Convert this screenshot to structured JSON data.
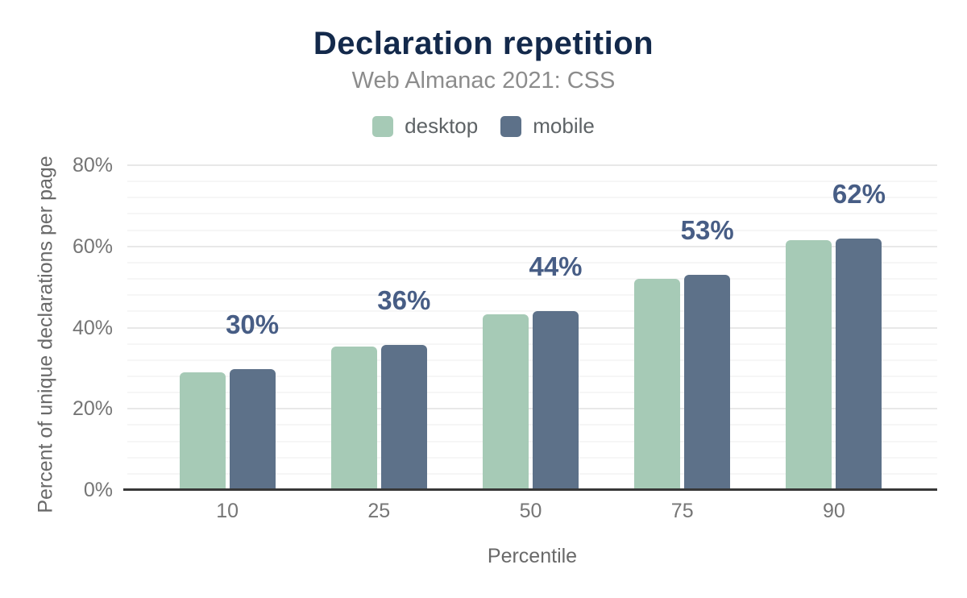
{
  "figure": {
    "title": "Declaration repetition",
    "subtitle": "Web Almanac 2021: CSS"
  },
  "legend": [
    {
      "label": "desktop",
      "color": "#a6cab6"
    },
    {
      "label": "mobile",
      "color": "#5d7189"
    }
  ],
  "chart_data": {
    "type": "bar",
    "title": "Declaration repetition",
    "subtitle": "Web Almanac 2021: CSS",
    "categories": [
      "10",
      "25",
      "50",
      "75",
      "90"
    ],
    "series": [
      {
        "name": "desktop",
        "color": "#a6cab6",
        "values": [
          29,
          35.4,
          43.3,
          52.1,
          61.5
        ]
      },
      {
        "name": "mobile",
        "color": "#5d7189",
        "values": [
          29.8,
          35.8,
          44.1,
          53,
          62
        ]
      }
    ],
    "annotations": [
      "30%",
      "36%",
      "44%",
      "53%",
      "62%"
    ],
    "annotated_series": "mobile",
    "xlabel": "Percentile",
    "ylabel": "Percent of unique declarations per page",
    "ylim": [
      0,
      80
    ],
    "y_major_ticks": [
      0,
      20,
      40,
      60,
      80
    ],
    "y_tick_suffix": "%",
    "minor_grid_step": 4,
    "grid": true,
    "legend_position": "top"
  },
  "colors": {
    "title": "#13294b",
    "subtitle": "#8c8c8c",
    "legend_text": "#5e6366",
    "tick_label": "#757575",
    "axis_title": "#696969",
    "annotation": "#475d85",
    "baseline": "#383838",
    "grid_major": "#e8e8e8",
    "grid_minor": "#f6f6f6"
  }
}
